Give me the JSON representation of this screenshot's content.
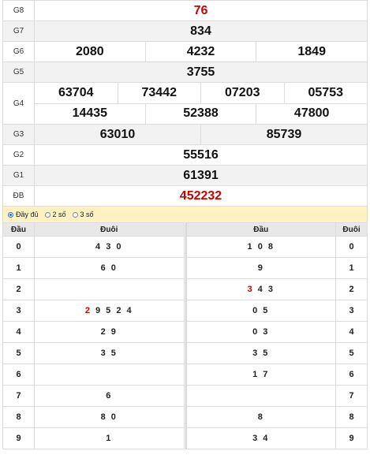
{
  "prizes": {
    "g8": {
      "label": "G8",
      "numbers": [
        "76"
      ]
    },
    "g7": {
      "label": "G7",
      "numbers": [
        "834"
      ]
    },
    "g6": {
      "label": "G6",
      "numbers": [
        "2080",
        "4232",
        "1849"
      ]
    },
    "g5": {
      "label": "G5",
      "numbers": [
        "3755"
      ]
    },
    "g4": {
      "label": "G4",
      "numbers": [
        "63704",
        "73442",
        "07203",
        "05753",
        "14435",
        "52388",
        "47800"
      ]
    },
    "g3": {
      "label": "G3",
      "numbers": [
        "63010",
        "85739"
      ]
    },
    "g2": {
      "label": "G2",
      "numbers": [
        "55516"
      ]
    },
    "g1": {
      "label": "G1",
      "numbers": [
        "61391"
      ]
    },
    "db": {
      "label": "ĐB",
      "numbers": [
        "452232"
      ]
    }
  },
  "filter": {
    "options": [
      "Đầy đủ",
      "2 số",
      "3 số"
    ],
    "selected": "Đầy đủ"
  },
  "loto_left": {
    "head_label": "Đầu",
    "tail_label": "Đuôi",
    "rows": [
      {
        "key": "0",
        "pre": "",
        "hl": "",
        "rest": "4 3 0"
      },
      {
        "key": "1",
        "pre": "",
        "hl": "",
        "rest": "6 0"
      },
      {
        "key": "2",
        "pre": "",
        "hl": "",
        "rest": ""
      },
      {
        "key": "3",
        "pre": "",
        "hl": "2",
        "rest": " 9 5 2 4"
      },
      {
        "key": "4",
        "pre": "",
        "hl": "",
        "rest": "2 9"
      },
      {
        "key": "5",
        "pre": "",
        "hl": "",
        "rest": "3 5"
      },
      {
        "key": "6",
        "pre": "",
        "hl": "",
        "rest": ""
      },
      {
        "key": "7",
        "pre": "",
        "hl": "",
        "rest": "6"
      },
      {
        "key": "8",
        "pre": "",
        "hl": "",
        "rest": "8 0"
      },
      {
        "key": "9",
        "pre": "",
        "hl": "",
        "rest": "1"
      }
    ]
  },
  "loto_right": {
    "head_label": "Đầu",
    "tail_label": "Đuôi",
    "rows": [
      {
        "key": "0",
        "hl": "",
        "rest": "1 0 8"
      },
      {
        "key": "1",
        "hl": "",
        "rest": "9"
      },
      {
        "key": "2",
        "hl": "3",
        "rest": " 4 3"
      },
      {
        "key": "3",
        "hl": "",
        "rest": "0 5"
      },
      {
        "key": "4",
        "hl": "",
        "rest": "0 3"
      },
      {
        "key": "5",
        "hl": "",
        "rest": "3 5"
      },
      {
        "key": "6",
        "hl": "",
        "rest": "1 7"
      },
      {
        "key": "7",
        "hl": "",
        "rest": ""
      },
      {
        "key": "8",
        "hl": "",
        "rest": "8"
      },
      {
        "key": "9",
        "hl": "",
        "rest": "3 4"
      }
    ]
  },
  "colors": {
    "highlight": "#cc0000",
    "filter_bg": "#fff1c2",
    "header_bg": "#e8e8e8",
    "alt_row": "#f2f2f2"
  }
}
